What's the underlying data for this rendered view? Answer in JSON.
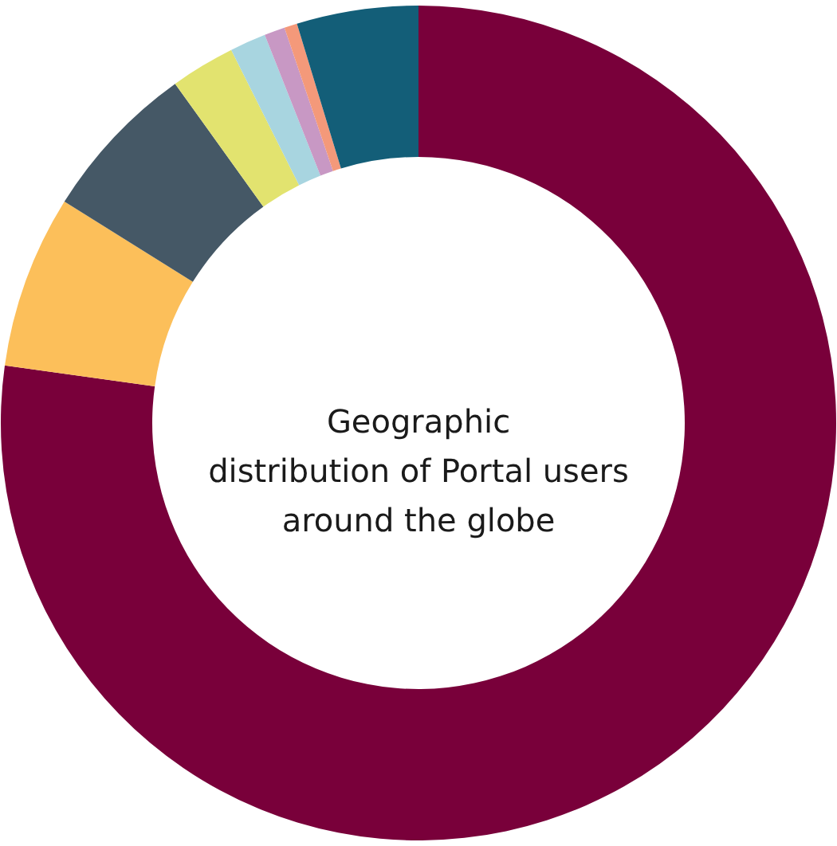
{
  "chart_data": {
    "type": "donut",
    "title": "Geographic\ndistribution of Portal users\naround the globe",
    "categories": [
      null,
      null,
      null,
      null,
      null,
      null,
      null,
      null
    ],
    "values": [
      77.2,
      6.7,
      6.2,
      2.5,
      1.4,
      0.8,
      0.5,
      4.7
    ],
    "colors": [
      "#79003a",
      "#fcbf5a",
      "#455866",
      "#e2e36f",
      "#a8d5e0",
      "#c898c4",
      "#f4997a",
      "#135e78"
    ]
  }
}
